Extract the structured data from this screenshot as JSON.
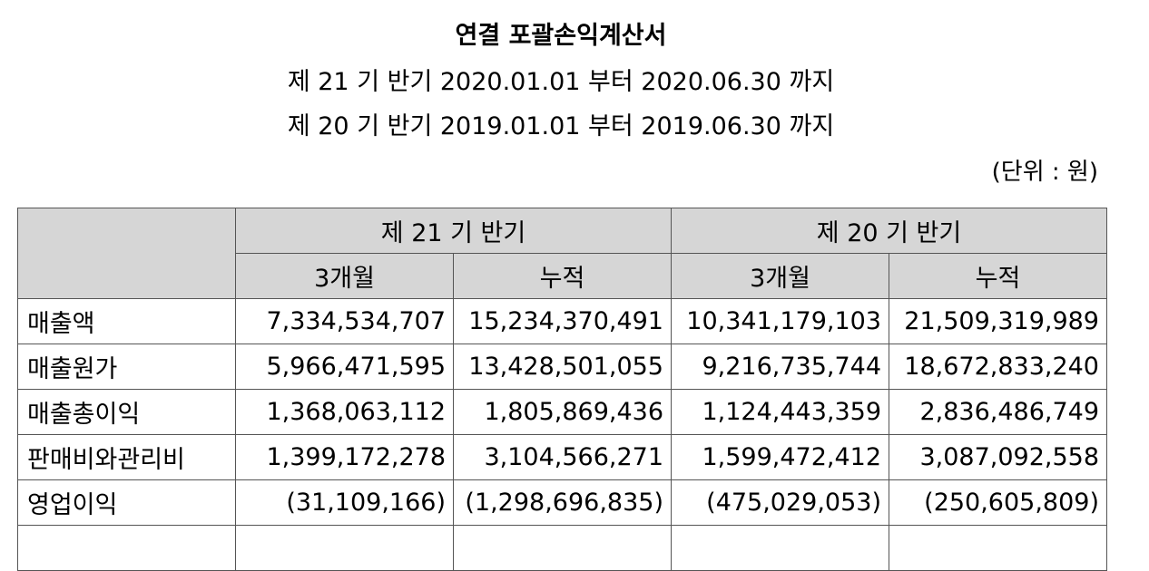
{
  "header": {
    "title": "연결 포괄손익계산서",
    "period_current": "제 21 기 반기 2020.01.01 부터 2020.06.30 까지",
    "period_prior": "제 20 기 반기 2019.01.01 부터 2019.06.30 까지",
    "unit": "(단위 : 원)"
  },
  "table": {
    "group_headers": [
      "제 21 기 반기",
      "제 20 기 반기"
    ],
    "sub_headers": [
      "3개월",
      "누적",
      "3개월",
      "누적"
    ],
    "rows": [
      {
        "label": "매출액",
        "values": [
          "7,334,534,707",
          "15,234,370,491",
          "10,341,179,103",
          "21,509,319,989"
        ]
      },
      {
        "label": "매출원가",
        "values": [
          "5,966,471,595",
          "13,428,501,055",
          "9,216,735,744",
          "18,672,833,240"
        ]
      },
      {
        "label": "매출총이익",
        "values": [
          "1,368,063,112",
          "1,805,869,436",
          "1,124,443,359",
          "2,836,486,749"
        ]
      },
      {
        "label": "판매비와관리비",
        "values": [
          "1,399,172,278",
          "3,104,566,271",
          "1,599,472,412",
          "3,087,092,558"
        ]
      },
      {
        "label": "영업이익",
        "values": [
          "(31,109,166)",
          "(1,298,696,835)",
          "(475,029,053)",
          "(250,605,809)"
        ]
      }
    ]
  }
}
